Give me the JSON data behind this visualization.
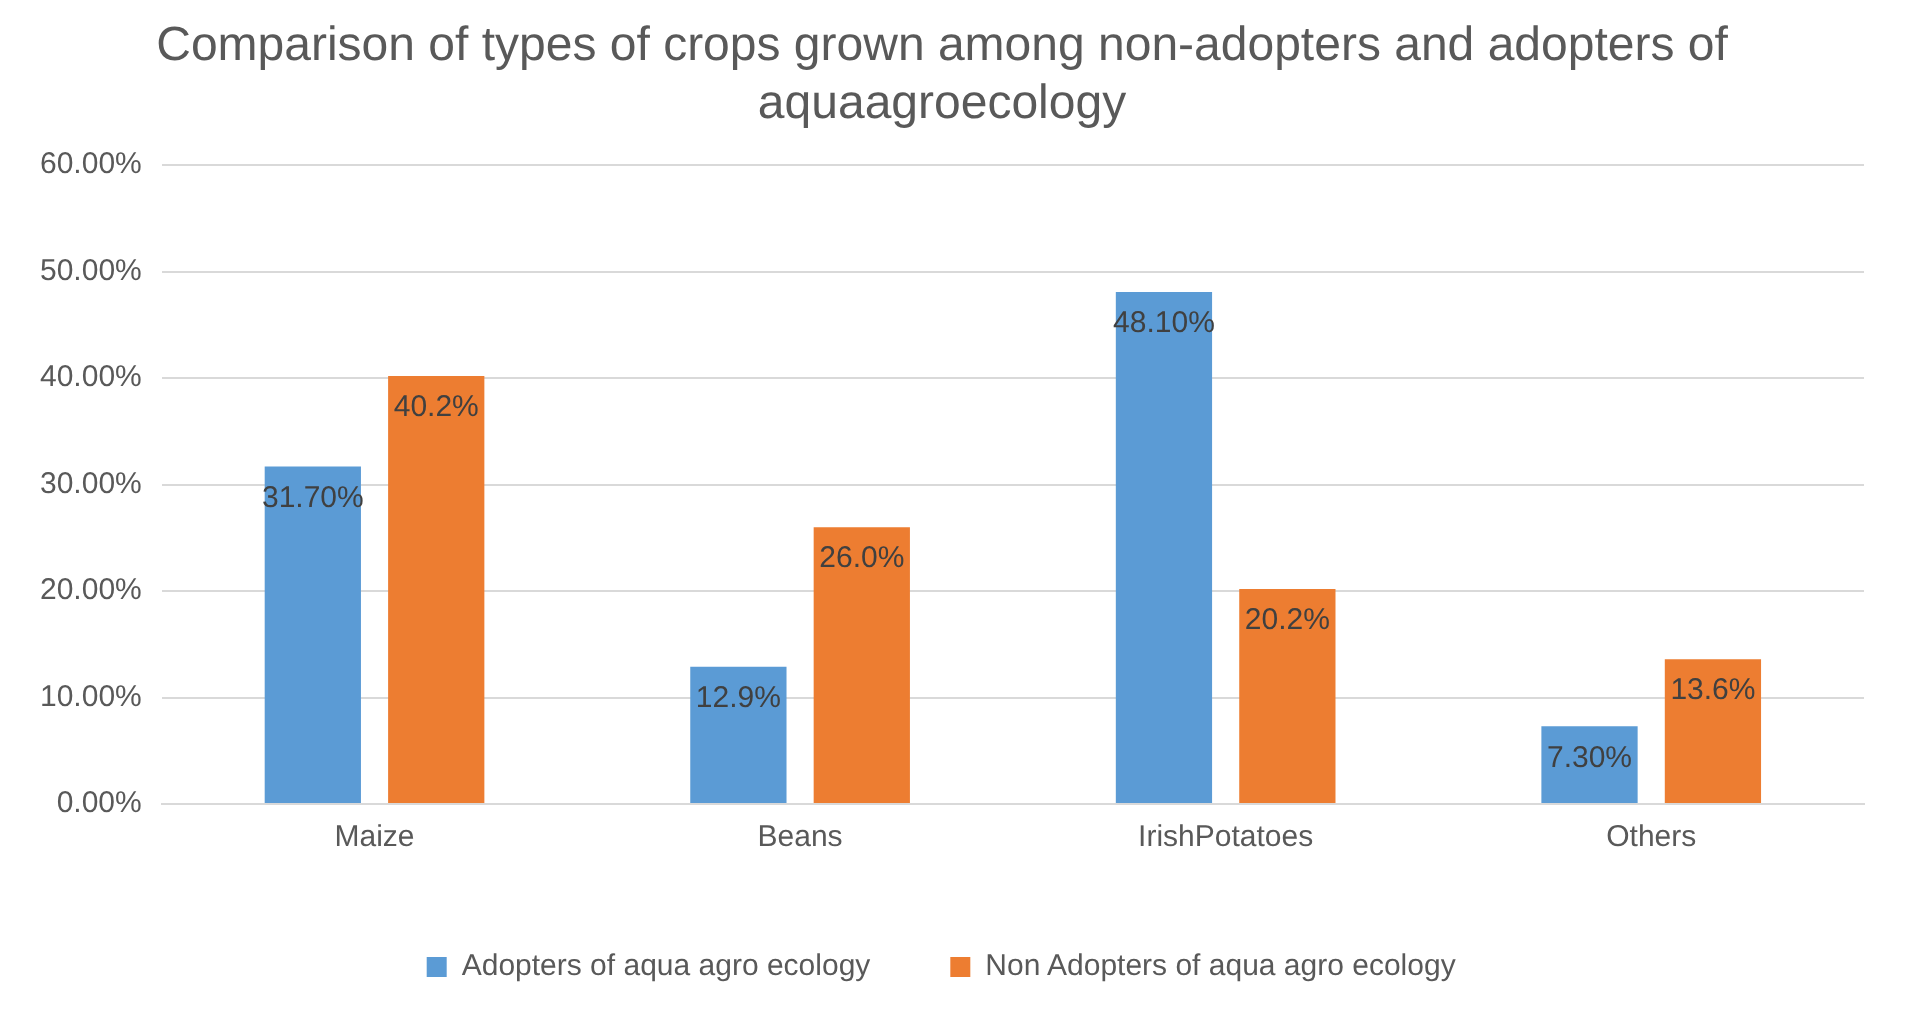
{
  "chart_data": {
    "type": "bar",
    "title": "Comparison of types of crops grown among non-adopters and adopters of aquaagroecology",
    "categories": [
      "Maize",
      "Beans",
      "IrishPotatoes",
      "Others"
    ],
    "series": [
      {
        "name": "Adopters of aqua agro ecology",
        "color": "#5b9bd5",
        "values": [
          31.7,
          12.9,
          48.1,
          7.3
        ],
        "value_labels": [
          "31.70%",
          "12.9%",
          "48.10%",
          "7.30%"
        ]
      },
      {
        "name": "Non Adopters of aqua agro ecology",
        "color": "#ed7d31",
        "values": [
          40.2,
          26.0,
          20.2,
          13.6
        ],
        "value_labels": [
          "40.2%",
          "26.0%",
          "20.2%",
          "13.6%"
        ]
      }
    ],
    "ylim": [
      0,
      60
    ],
    "yticks": [
      {
        "value": 0,
        "label": "0.00%"
      },
      {
        "value": 10,
        "label": "10.00%"
      },
      {
        "value": 20,
        "label": "20.00%"
      },
      {
        "value": 30,
        "label": "30.00%"
      },
      {
        "value": 40,
        "label": "40.00%"
      },
      {
        "value": 50,
        "label": "50.00%"
      },
      {
        "value": 60,
        "label": "60.00%"
      }
    ],
    "grid": "y",
    "legend": "bottom"
  }
}
